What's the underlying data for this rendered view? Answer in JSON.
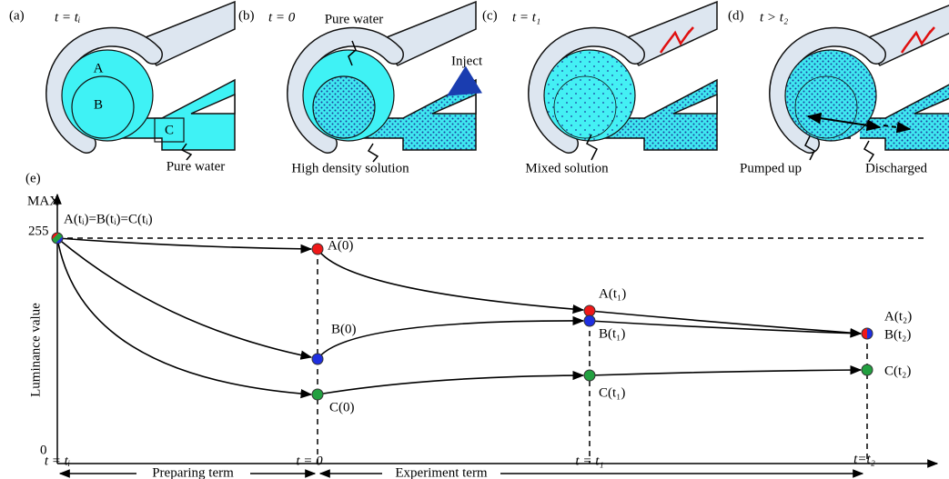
{
  "panels": [
    {
      "label": "(a)",
      "time": "t = tᵢ",
      "region_a": "A",
      "region_b": "B",
      "region_c": "C",
      "note": "Pure water"
    },
    {
      "label": "(b)",
      "time": "t = 0",
      "note_top": "Pure water",
      "inject": "Inject",
      "note": "High density solution"
    },
    {
      "label": "(c)",
      "time": "t = t₁",
      "note": "Mixed solution"
    },
    {
      "label": "(d)",
      "time": "t > t₂",
      "note": "Pumped up",
      "note2": "Discharged"
    }
  ],
  "graph": {
    "label": "(e)",
    "y_label": "Luminance value",
    "y_max": "MAX",
    "y_255": "255",
    "y_0": "0",
    "start_label": "A(tᵢ)=B(tᵢ)=C(tᵢ)",
    "points": [
      "A(0)",
      "B(0)",
      "C(0)",
      "A(t₁)",
      "B(t₁)",
      "C(t₁)",
      "A(t₂)",
      "B(t₂)",
      "C(t₂)"
    ],
    "x_labels": [
      "t = tᵢ",
      "t = 0",
      "t = t₁",
      "t=t₂"
    ],
    "terms": [
      "Preparing term",
      "Experiment term"
    ]
  }
}
